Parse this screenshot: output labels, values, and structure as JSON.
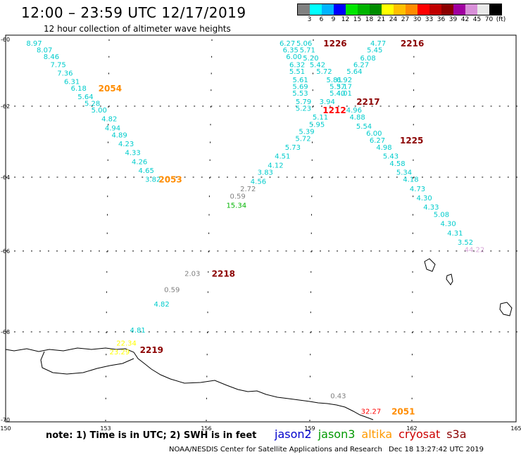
{
  "title": "12:00 – 23:59 UTC 12/17/2019",
  "subtitle": "12 hour collection of altimeter wave heights",
  "colorbar": {
    "colors": [
      "#808080",
      "#00ffff",
      "#00b4ff",
      "#0000ff",
      "#00e600",
      "#00b400",
      "#008c00",
      "#ffff00",
      "#ffc000",
      "#ff8c00",
      "#ff0000",
      "#c00000",
      "#8b0000",
      "#a000a0",
      "#d890d8",
      "#e8e8e8",
      "#000000"
    ],
    "labels": [
      "3",
      "6",
      "9",
      "12",
      "15",
      "18",
      "21",
      "24",
      "27",
      "30",
      "33",
      "36",
      "39",
      "42",
      "45",
      "70",
      "(ft)"
    ]
  },
  "axes": {
    "lat_ticks": [
      "-60",
      "-62",
      "-64",
      "-66",
      "-68",
      "-70"
    ],
    "lon_ticks": [
      "150",
      "153",
      "156",
      "159",
      "162",
      "165"
    ]
  },
  "map_data": {
    "lon_range": [
      150,
      165
    ],
    "lat_range": [
      -70,
      -60
    ],
    "track_labels": [
      {
        "text": "2054",
        "lon": 152.7,
        "lat": -61.45,
        "color": "#ff8c00"
      },
      {
        "text": "2053",
        "lon": 154.5,
        "lat": -64.05,
        "color": "#ff8c00"
      },
      {
        "text": "1226",
        "lon": 159.3,
        "lat": -60.1,
        "color": "#8b0000"
      },
      {
        "text": "2216",
        "lon": 161.6,
        "lat": -60.1,
        "color": "#8b0000"
      },
      {
        "text": "2217",
        "lon": 160.3,
        "lat": -61.85,
        "color": "#8b0000"
      },
      {
        "text": "1212",
        "lon": 159.3,
        "lat": -62.1,
        "color": "#ff0000"
      },
      {
        "text": "1225",
        "lon": 161.6,
        "lat": -62.95,
        "color": "#8b0000"
      },
      {
        "text": "2218",
        "lon": 156.1,
        "lat": -66.55,
        "color": "#8b0000"
      },
      {
        "text": "2219",
        "lon": 154.0,
        "lat": -68.4,
        "color": "#8b0000"
      },
      {
        "text": "2051",
        "lon": 161.4,
        "lat": -69.8,
        "color": "#ff8c00"
      }
    ],
    "values": [
      {
        "text": "8.97",
        "lon": 150.6,
        "lat": -60.1,
        "color": "#00cccc"
      },
      {
        "text": "8.07",
        "lon": 150.9,
        "lat": -60.3,
        "color": "#00cccc"
      },
      {
        "text": "8.46",
        "lon": 151.1,
        "lat": -60.5,
        "color": "#00cccc"
      },
      {
        "text": "7.75",
        "lon": 151.3,
        "lat": -60.75,
        "color": "#00cccc"
      },
      {
        "text": "7.36",
        "lon": 151.5,
        "lat": -61.0,
        "color": "#00cccc"
      },
      {
        "text": "6.31",
        "lon": 151.7,
        "lat": -61.25,
        "color": "#00cccc"
      },
      {
        "text": "6.18",
        "lon": 151.9,
        "lat": -61.45,
        "color": "#00cccc"
      },
      {
        "text": "5.64",
        "lon": 152.1,
        "lat": -61.7,
        "color": "#00cccc"
      },
      {
        "text": "5.28",
        "lon": 152.3,
        "lat": -61.9,
        "color": "#00cccc"
      },
      {
        "text": "5.00",
        "lon": 152.5,
        "lat": -62.1,
        "color": "#00cccc"
      },
      {
        "text": "4.82",
        "lon": 152.8,
        "lat": -62.35,
        "color": "#00cccc"
      },
      {
        "text": "4.94",
        "lon": 152.9,
        "lat": -62.6,
        "color": "#00cccc"
      },
      {
        "text": "4.89",
        "lon": 153.1,
        "lat": -62.8,
        "color": "#00cccc"
      },
      {
        "text": "4.23",
        "lon": 153.3,
        "lat": -63.05,
        "color": "#00cccc"
      },
      {
        "text": "4.33",
        "lon": 153.5,
        "lat": -63.3,
        "color": "#00cccc"
      },
      {
        "text": "4.26",
        "lon": 153.7,
        "lat": -63.55,
        "color": "#00cccc"
      },
      {
        "text": "4.65",
        "lon": 153.9,
        "lat": -63.8,
        "color": "#00cccc"
      },
      {
        "text": "3.82",
        "lon": 154.1,
        "lat": -64.05,
        "color": "#00cccc"
      },
      {
        "text": "6.27",
        "lon": 158.0,
        "lat": -60.1,
        "color": "#00cccc"
      },
      {
        "text": "5.06",
        "lon": 158.5,
        "lat": -60.1,
        "color": "#00cccc"
      },
      {
        "text": "6.35",
        "lon": 158.1,
        "lat": -60.3,
        "color": "#00cccc"
      },
      {
        "text": "5.71",
        "lon": 158.6,
        "lat": -60.3,
        "color": "#00cccc"
      },
      {
        "text": "6.00",
        "lon": 158.2,
        "lat": -60.5,
        "color": "#00cccc"
      },
      {
        "text": "5.20",
        "lon": 158.7,
        "lat": -60.55,
        "color": "#00cccc"
      },
      {
        "text": "6.32",
        "lon": 158.3,
        "lat": -60.75,
        "color": "#00cccc"
      },
      {
        "text": "5.42",
        "lon": 158.9,
        "lat": -60.75,
        "color": "#00cccc"
      },
      {
        "text": "5.51",
        "lon": 158.3,
        "lat": -60.95,
        "color": "#00cccc"
      },
      {
        "text": "5.72",
        "lon": 159.1,
        "lat": -60.95,
        "color": "#00cccc"
      },
      {
        "text": "5.61",
        "lon": 158.4,
        "lat": -61.2,
        "color": "#00cccc"
      },
      {
        "text": "5.81",
        "lon": 159.4,
        "lat": -61.2,
        "color": "#00cccc"
      },
      {
        "text": "5.69",
        "lon": 158.4,
        "lat": -61.4,
        "color": "#00cccc"
      },
      {
        "text": "5.37",
        "lon": 159.5,
        "lat": -61.4,
        "color": "#00cccc"
      },
      {
        "text": "5.53",
        "lon": 158.4,
        "lat": -61.6,
        "color": "#00cccc"
      },
      {
        "text": "5.40",
        "lon": 159.5,
        "lat": -61.6,
        "color": "#00cccc"
      },
      {
        "text": "5.79",
        "lon": 158.5,
        "lat": -61.85,
        "color": "#00cccc"
      },
      {
        "text": "3.94",
        "lon": 159.2,
        "lat": -61.85,
        "color": "#00cccc"
      },
      {
        "text": "5.23",
        "lon": 158.5,
        "lat": -62.05,
        "color": "#00cccc"
      },
      {
        "text": "5.11",
        "lon": 159.0,
        "lat": -62.3,
        "color": "#00cccc"
      },
      {
        "text": "5.95",
        "lon": 158.9,
        "lat": -62.5,
        "color": "#00cccc"
      },
      {
        "text": "5.39",
        "lon": 158.6,
        "lat": -62.7,
        "color": "#00cccc"
      },
      {
        "text": "5.72",
        "lon": 158.5,
        "lat": -62.9,
        "color": "#00cccc"
      },
      {
        "text": "5.73",
        "lon": 158.2,
        "lat": -63.15,
        "color": "#00cccc"
      },
      {
        "text": "4.51",
        "lon": 157.9,
        "lat": -63.4,
        "color": "#00cccc"
      },
      {
        "text": "4.12",
        "lon": 157.7,
        "lat": -63.65,
        "color": "#00cccc"
      },
      {
        "text": "3.83",
        "lon": 157.4,
        "lat": -63.85,
        "color": "#00cccc"
      },
      {
        "text": "4.56",
        "lon": 157.2,
        "lat": -64.1,
        "color": "#00cccc"
      },
      {
        "text": "2.72",
        "lon": 156.9,
        "lat": -64.3,
        "color": "#808080"
      },
      {
        "text": "0.59",
        "lon": 156.6,
        "lat": -64.5,
        "color": "#808080"
      },
      {
        "text": "15.34",
        "lon": 156.5,
        "lat": -64.75,
        "color": "#00b400"
      },
      {
        "text": "4.77",
        "lon": 160.7,
        "lat": -60.1,
        "color": "#00cccc"
      },
      {
        "text": "5.45",
        "lon": 160.6,
        "lat": -60.3,
        "color": "#00cccc"
      },
      {
        "text": "6.08",
        "lon": 160.4,
        "lat": -60.55,
        "color": "#00cccc"
      },
      {
        "text": "6.27",
        "lon": 160.2,
        "lat": -60.75,
        "color": "#00cccc"
      },
      {
        "text": "5.64",
        "lon": 160.0,
        "lat": -60.95,
        "color": "#00cccc"
      },
      {
        "text": "6.92",
        "lon": 159.7,
        "lat": -61.2,
        "color": "#00cccc"
      },
      {
        "text": "5.17",
        "lon": 159.7,
        "lat": -61.4,
        "color": "#00cccc"
      },
      {
        "text": "4.01",
        "lon": 159.7,
        "lat": -61.6,
        "color": "#00cccc"
      },
      {
        "text": "4.96",
        "lon": 160.0,
        "lat": -62.1,
        "color": "#00cccc"
      },
      {
        "text": "4.88",
        "lon": 160.1,
        "lat": -62.3,
        "color": "#00cccc"
      },
      {
        "text": "5.54",
        "lon": 160.3,
        "lat": -62.55,
        "color": "#00cccc"
      },
      {
        "text": "6.00",
        "lon": 160.6,
        "lat": -62.75,
        "color": "#00cccc"
      },
      {
        "text": "6.27",
        "lon": 160.7,
        "lat": -62.95,
        "color": "#00cccc"
      },
      {
        "text": "4.98",
        "lon": 160.9,
        "lat": -63.15,
        "color": "#00cccc"
      },
      {
        "text": "5.43",
        "lon": 161.1,
        "lat": -63.4,
        "color": "#00cccc"
      },
      {
        "text": "4.58",
        "lon": 161.3,
        "lat": -63.6,
        "color": "#00cccc"
      },
      {
        "text": "5.34",
        "lon": 161.5,
        "lat": -63.85,
        "color": "#00cccc"
      },
      {
        "text": "4.18",
        "lon": 161.7,
        "lat": -64.05,
        "color": "#00cccc"
      },
      {
        "text": "4.73",
        "lon": 161.9,
        "lat": -64.3,
        "color": "#00cccc"
      },
      {
        "text": "4.30",
        "lon": 162.1,
        "lat": -64.55,
        "color": "#00cccc"
      },
      {
        "text": "4.33",
        "lon": 162.3,
        "lat": -64.8,
        "color": "#00cccc"
      },
      {
        "text": "5.08",
        "lon": 162.6,
        "lat": -65.0,
        "color": "#00cccc"
      },
      {
        "text": "4.30",
        "lon": 162.8,
        "lat": -65.25,
        "color": "#00cccc"
      },
      {
        "text": "4.31",
        "lon": 163.0,
        "lat": -65.5,
        "color": "#00cccc"
      },
      {
        "text": "3.52",
        "lon": 163.3,
        "lat": -65.75,
        "color": "#00cccc"
      },
      {
        "text": "44.22",
        "lon": 163.5,
        "lat": -65.95,
        "color": "#d8a8d8"
      },
      {
        "text": "2.03",
        "lon": 155.3,
        "lat": -66.55,
        "color": "#808080"
      },
      {
        "text": "0.59",
        "lon": 154.7,
        "lat": -66.95,
        "color": "#808080"
      },
      {
        "text": "4.82",
        "lon": 154.4,
        "lat": -67.3,
        "color": "#00cccc"
      },
      {
        "text": "4.81",
        "lon": 153.7,
        "lat": -67.95,
        "color": "#00cccc"
      },
      {
        "text": "22.34",
        "lon": 153.3,
        "lat": -68.25,
        "color": "#ffff00"
      },
      {
        "text": "23.29",
        "lon": 153.1,
        "lat": -68.45,
        "color": "#ffff00"
      },
      {
        "text": "0.43",
        "lon": 159.6,
        "lat": -69.45,
        "color": "#808080"
      },
      {
        "text": "32.27",
        "lon": 160.5,
        "lat": -69.8,
        "color": "#ff0000"
      }
    ]
  },
  "note": "note:  1) Time is in UTC;  2) SWH is in feet",
  "legend": [
    {
      "label": "jason2",
      "color": "#0000cc"
    },
    {
      "label": "jason3",
      "color": "#009900"
    },
    {
      "label": "altika",
      "color": "#ff9900"
    },
    {
      "label": "cryosat",
      "color": "#cc0000"
    },
    {
      "label": "s3a",
      "color": "#8b0000"
    }
  ],
  "credit": "NOAA/NESDIS Center for Satellite Applications and Research",
  "timestamp": "Dec 18 13:27:42 UTC 2019"
}
